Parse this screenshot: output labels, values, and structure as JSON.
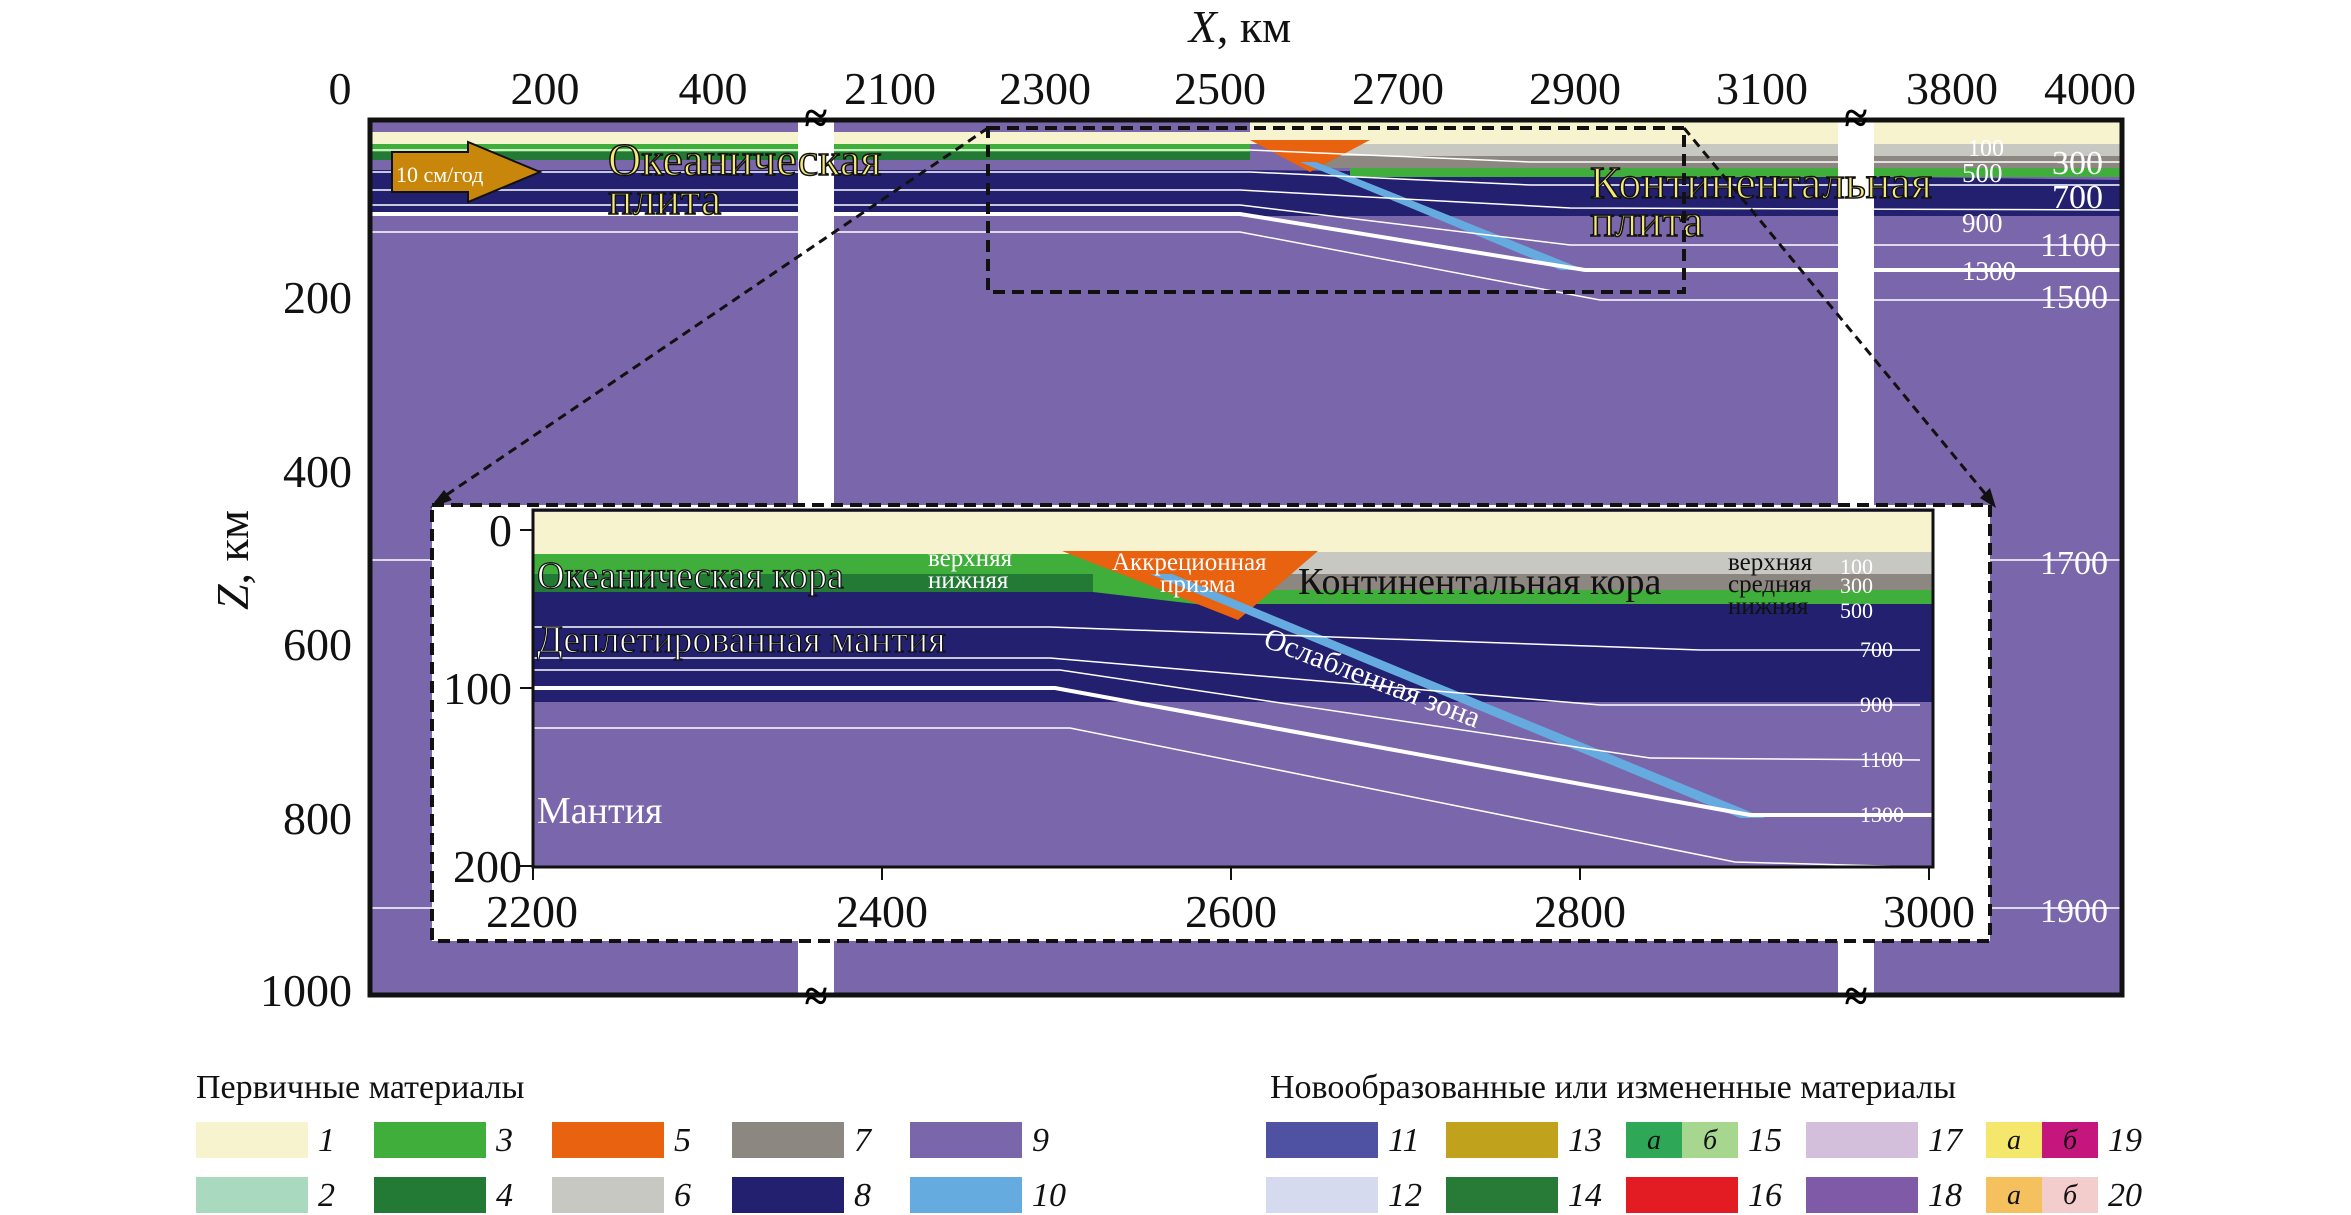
{
  "axes": {
    "x_title": "X",
    "x_unit": ", км",
    "z_title": "Z",
    "z_unit": ", км",
    "x_ticks": [
      "0",
      "200",
      "400",
      "2100",
      "2300",
      "2500",
      "2700",
      "2900",
      "3100",
      "3800",
      "4000"
    ],
    "z_ticks": [
      "200",
      "400",
      "600",
      "800",
      "1000"
    ],
    "break_mark": "≈"
  },
  "main_labels": {
    "velocity": "10 см/год",
    "oceanic_plate_1": "Океаническая",
    "oceanic_plate_2": "плита",
    "continental_plate_1": "Континентальная",
    "continental_plate_2": "плита"
  },
  "isotherms_main": {
    "left": [
      "100",
      "500",
      "900",
      "1300"
    ],
    "right": [
      "300",
      "700",
      "1100",
      "1500",
      "1700",
      "1900"
    ]
  },
  "inset": {
    "x_ticks": [
      "2200",
      "2400",
      "2600",
      "2800",
      "3000"
    ],
    "z_ticks": [
      "0",
      "100",
      "200"
    ],
    "labels": {
      "oceanic_crust": "Океаническая кора",
      "upper_left": "верхняя",
      "lower_left": "нижняя",
      "accretion_1": "Аккреционная",
      "accretion_2": "призма",
      "continental_crust": "Континентальная кора",
      "upper_right": "верхняя",
      "middle_right": "средняя",
      "lower_right": "нижняя",
      "depleted_mantle": "Деплетированная мантия",
      "weak_zone": "Ослабленная зона",
      "mantle": "Мантия"
    },
    "isotherms": [
      "100",
      "300",
      "500",
      "700",
      "900",
      "1100",
      "1300"
    ]
  },
  "legend": {
    "primary_title": "Первичные материалы",
    "new_title": "Новообразованные или измененные материалы",
    "a_label": "а",
    "b_label": "б",
    "primary": [
      {
        "num": "1",
        "color": "#f8f3cf"
      },
      {
        "num": "2",
        "color": "#a9d9bf"
      },
      {
        "num": "3",
        "color": "#3fae3a"
      },
      {
        "num": "4",
        "color": "#237a35"
      },
      {
        "num": "5",
        "color": "#e8620f"
      },
      {
        "num": "6",
        "color": "#c8c8c3"
      },
      {
        "num": "7",
        "color": "#8c8781"
      },
      {
        "num": "8",
        "color": "#22206f"
      },
      {
        "num": "9",
        "color": "#7a66aa"
      },
      {
        "num": "10",
        "color": "#66abe0"
      }
    ],
    "new": [
      {
        "num": "11",
        "color": "#4f52a3"
      },
      {
        "num": "12",
        "color": "#d6daef"
      },
      {
        "num": "13",
        "color": "#c1a21d"
      },
      {
        "num": "14",
        "color": "#287b36"
      },
      {
        "num": "15",
        "color_a": "#2ea856",
        "color_b": "#a7d68f"
      },
      {
        "num": "16",
        "color": "#e31b22"
      },
      {
        "num": "17",
        "color": "#d3bedc"
      },
      {
        "num": "18",
        "color": "#7f5aa6"
      },
      {
        "num": "19",
        "color_a": "#f5e76b",
        "color_b": "#c4167c"
      },
      {
        "num": "20",
        "color_a": "#f4c15e",
        "color_b": "#f3cccc"
      }
    ]
  }
}
